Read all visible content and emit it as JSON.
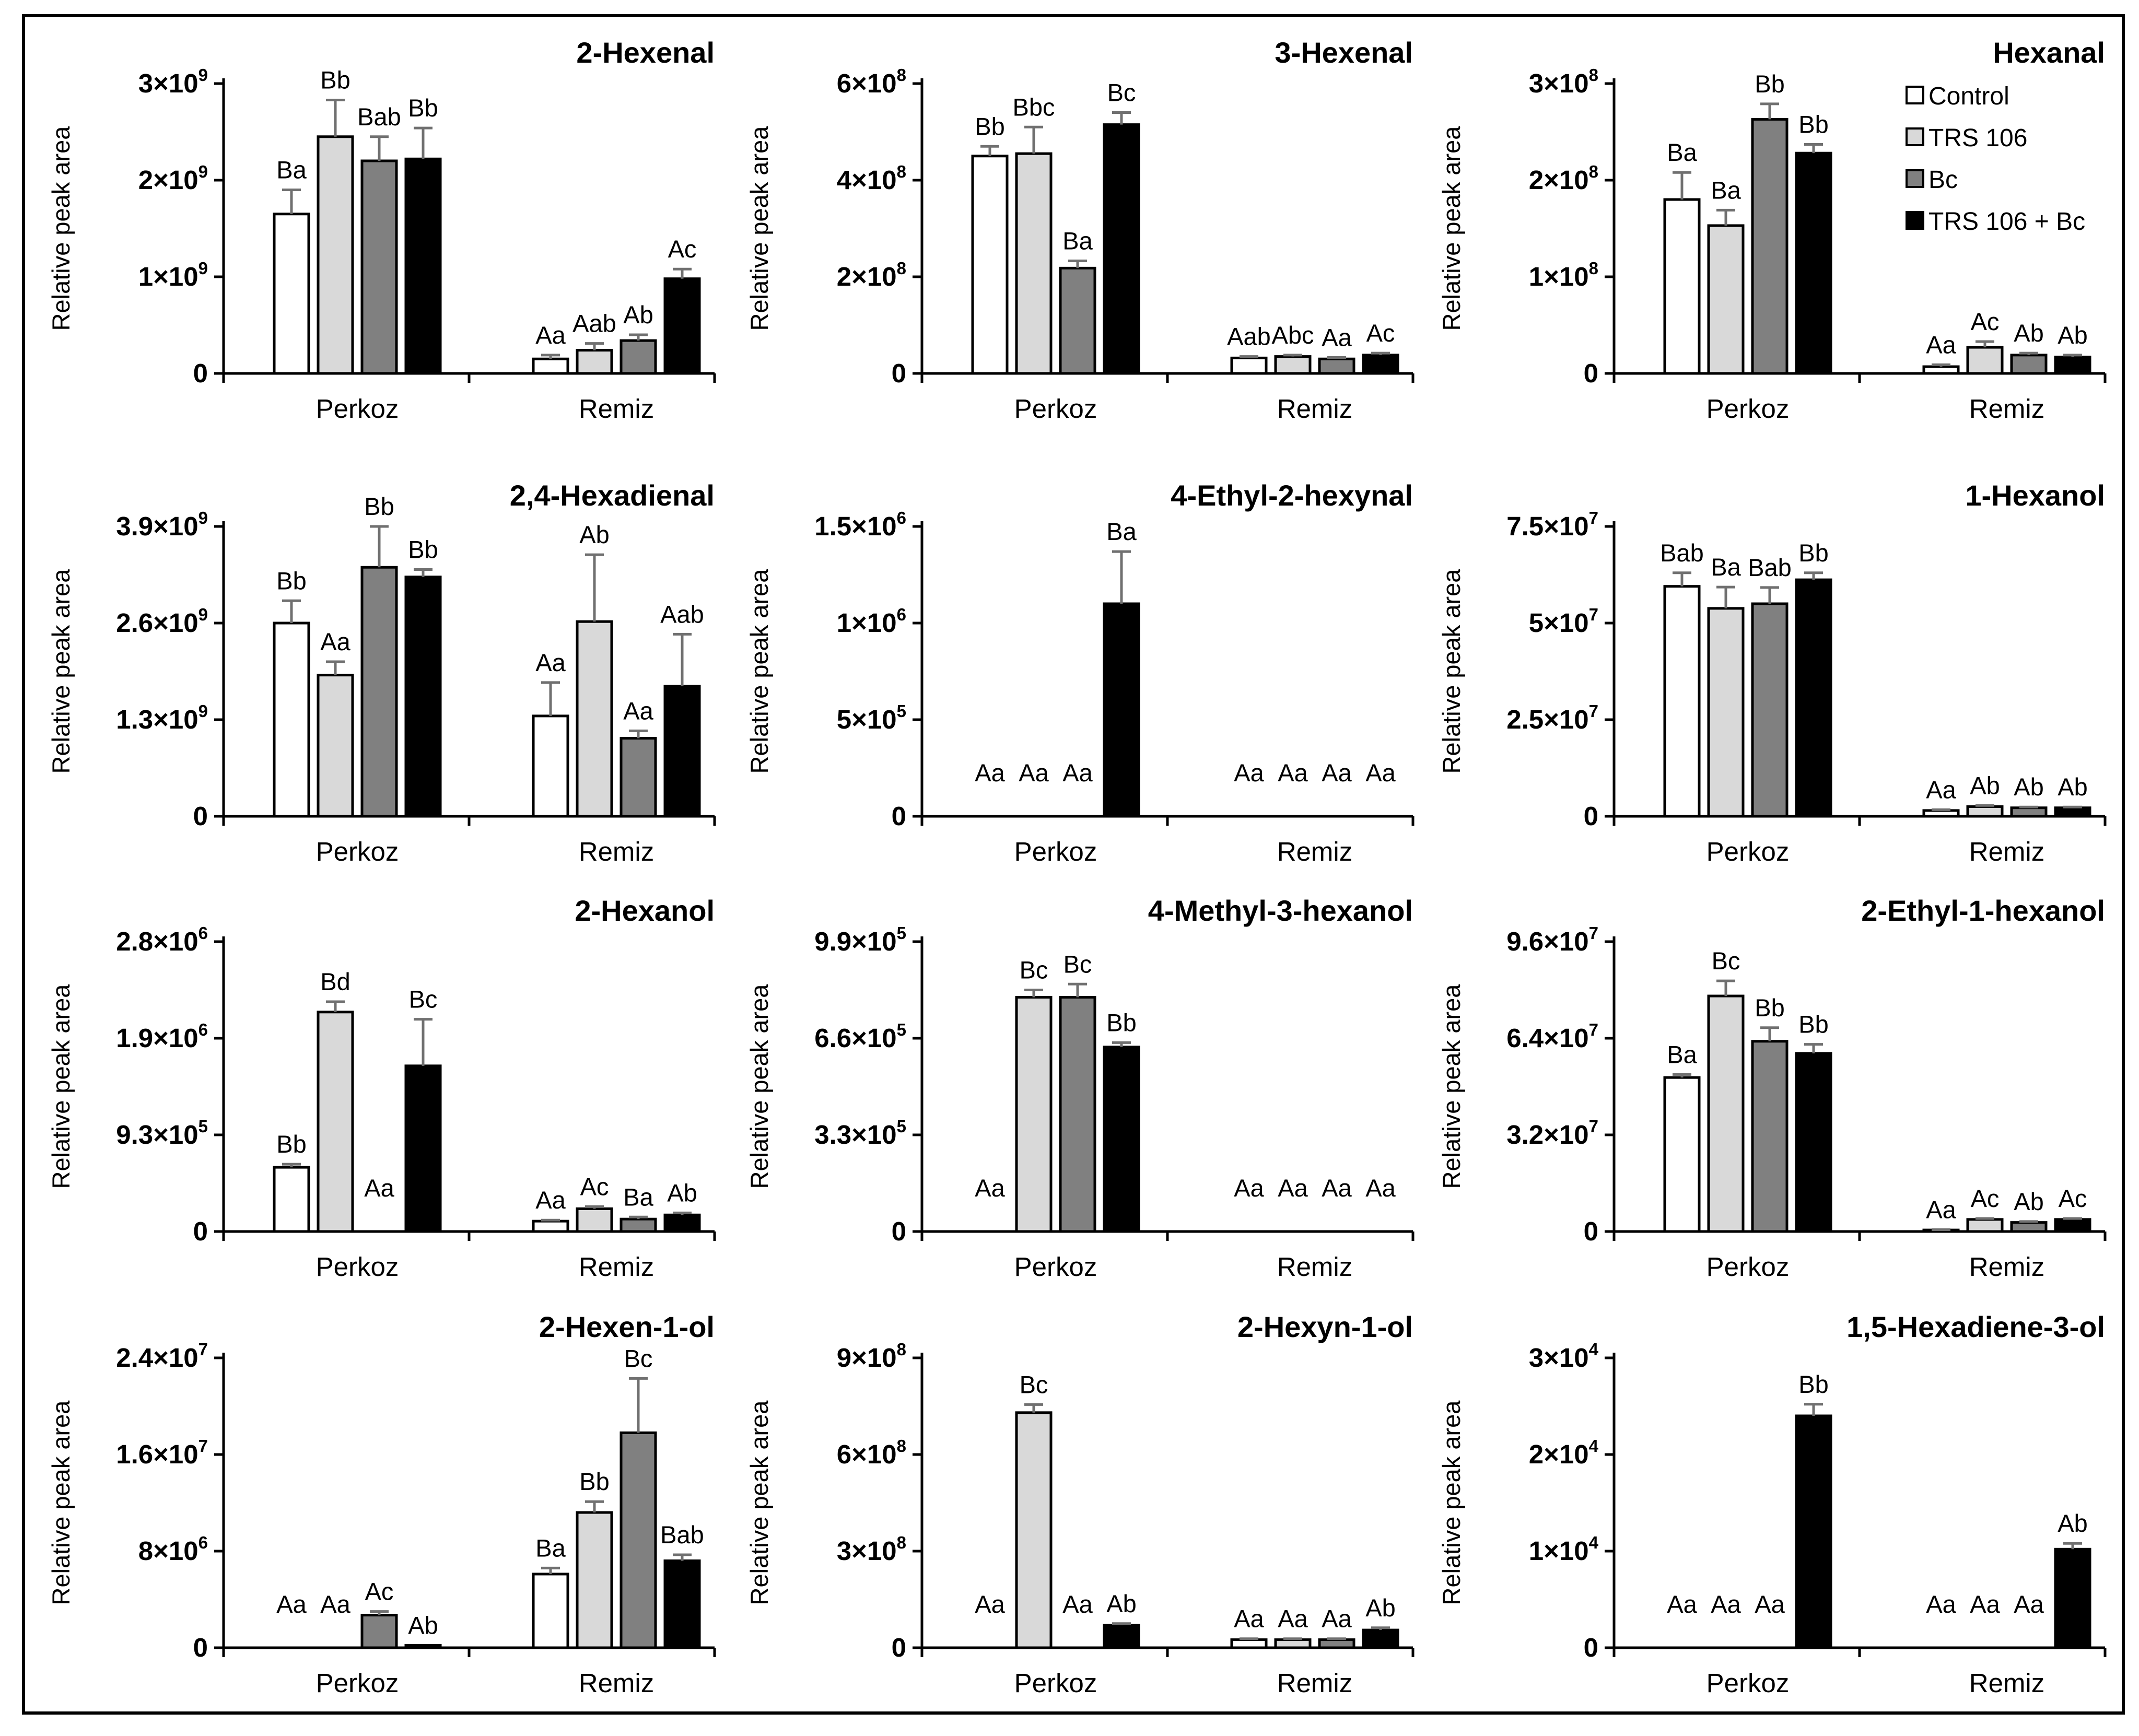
{
  "chart_data": {
    "type": "bar",
    "ylabel": "Relative peak area",
    "categories": [
      "Perkoz",
      "Remiz"
    ],
    "legend": [
      {
        "name": "Control",
        "color": "#ffffff"
      },
      {
        "name": "TRS 106",
        "color": "#d9d9d9"
      },
      {
        "name": "Bc",
        "color": "#808080"
      },
      {
        "name": "TRS 106 + Bc",
        "color": "#000000"
      }
    ],
    "legend_position": "top-right",
    "panels": [
      {
        "title": "2-Hexenal",
        "ymax": 3,
        "exp": "9",
        "ticks": [
          {
            "label": "0"
          },
          {
            "label": "1×10",
            "sup": "9"
          },
          {
            "label": "2×10",
            "sup": "9"
          },
          {
            "label": "3×10",
            "sup": "9"
          }
        ],
        "values": [
          [
            1.65,
            2.45,
            2.2,
            2.22
          ],
          [
            0.15,
            0.24,
            0.34,
            0.98
          ]
        ],
        "errors": [
          [
            0.25,
            0.38,
            0.25,
            0.32
          ],
          [
            0.04,
            0.07,
            0.06,
            0.1
          ]
        ],
        "letters": [
          [
            "Ba",
            "Bb",
            "Bab",
            "Bb"
          ],
          [
            "Aa",
            "Aab",
            "Ab",
            "Ac"
          ]
        ]
      },
      {
        "title": "3-Hexenal",
        "ymax": 6,
        "exp": "8",
        "ticks": [
          {
            "label": "0"
          },
          {
            "label": "2×10",
            "sup": "8"
          },
          {
            "label": "4×10",
            "sup": "8"
          },
          {
            "label": "6×10",
            "sup": "8"
          }
        ],
        "values": [
          [
            4.5,
            4.55,
            2.18,
            5.15
          ],
          [
            0.32,
            0.35,
            0.3,
            0.38
          ]
        ],
        "errors": [
          [
            0.2,
            0.55,
            0.15,
            0.25
          ],
          [
            0.03,
            0.03,
            0.03,
            0.04
          ]
        ],
        "letters": [
          [
            "Bb",
            "Bbc",
            "Ba",
            "Bc"
          ],
          [
            "Aab",
            "Abc",
            "Aa",
            "Ac"
          ]
        ]
      },
      {
        "title": "Hexanal",
        "ymax": 3,
        "exp": "8",
        "ticks": [
          {
            "label": "0"
          },
          {
            "label": "1×10",
            "sup": "8"
          },
          {
            "label": "2×10",
            "sup": "8"
          },
          {
            "label": "3×10",
            "sup": "8"
          }
        ],
        "values": [
          [
            1.8,
            1.53,
            2.63,
            2.28
          ],
          [
            0.07,
            0.27,
            0.19,
            0.17
          ]
        ],
        "errors": [
          [
            0.28,
            0.16,
            0.16,
            0.09
          ],
          [
            0.02,
            0.06,
            0.02,
            0.02
          ]
        ],
        "letters": [
          [
            "Ba",
            "Ba",
            "Bb",
            "Bb"
          ],
          [
            "Aa",
            "Ac",
            "Ab",
            "Ab"
          ]
        ]
      },
      {
        "title": "2,4-Hexadienal",
        "ymax": 3.9,
        "exp": "9",
        "ticks": [
          {
            "label": "0"
          },
          {
            "label": "1.3×10",
            "sup": "9"
          },
          {
            "label": "2.6×10",
            "sup": "9"
          },
          {
            "label": "3.9×10",
            "sup": "9"
          }
        ],
        "values": [
          [
            2.6,
            1.9,
            3.35,
            3.22
          ],
          [
            1.35,
            2.62,
            1.05,
            1.75
          ]
        ],
        "errors": [
          [
            0.3,
            0.18,
            0.55,
            0.1
          ],
          [
            0.45,
            0.9,
            0.1,
            0.7
          ]
        ],
        "letters": [
          [
            "Bb",
            "Aa",
            "Bb",
            "Bb"
          ],
          [
            "Aa",
            "Ab",
            "Aa",
            "Aab"
          ]
        ]
      },
      {
        "title": "4-Ethyl-2-hexynal",
        "ymax": 1.5,
        "exp": "6",
        "ticks": [
          {
            "label": "0"
          },
          {
            "label": "5×10",
            "sup": "5"
          },
          {
            "label": "1×10",
            "sup": "6"
          },
          {
            "label": "1.5×10",
            "sup": "6"
          }
        ],
        "values": [
          [
            0,
            0,
            0,
            1.1
          ],
          [
            0,
            0,
            0,
            0
          ]
        ],
        "errors": [
          [
            0,
            0,
            0,
            0.27
          ],
          [
            0,
            0,
            0,
            0
          ]
        ],
        "letters": [
          [
            "Aa",
            "Aa",
            "Aa",
            "Ba"
          ],
          [
            "Aa",
            "Aa",
            "Aa",
            "Aa"
          ]
        ]
      },
      {
        "title": "1-Hexanol",
        "ymax": 7.5,
        "exp": "7",
        "ticks": [
          {
            "label": "0"
          },
          {
            "label": "2.5×10",
            "sup": "7"
          },
          {
            "label": "5×10",
            "sup": "7"
          },
          {
            "label": "7.5×10",
            "sup": "7"
          }
        ],
        "values": [
          [
            5.95,
            5.38,
            5.5,
            6.12
          ],
          [
            0.15,
            0.25,
            0.22,
            0.22
          ]
        ],
        "errors": [
          [
            0.35,
            0.55,
            0.42,
            0.18
          ],
          [
            0.02,
            0.03,
            0.02,
            0.02
          ]
        ],
        "letters": [
          [
            "Bab",
            "Ba",
            "Bab",
            "Bb"
          ],
          [
            "Aa",
            "Ab",
            "Ab",
            "Ab"
          ]
        ]
      },
      {
        "title": "2-Hexanol",
        "ymax": 2.8,
        "exp": "6",
        "ticks": [
          {
            "label": "0"
          },
          {
            "label": "9.3×10",
            "sup": "5"
          },
          {
            "label": "1.9×10",
            "sup": "6"
          },
          {
            "label": "2.8×10",
            "sup": "6"
          }
        ],
        "values": [
          [
            0.62,
            2.12,
            0,
            1.6
          ],
          [
            0.1,
            0.22,
            0.12,
            0.16
          ]
        ],
        "errors": [
          [
            0.03,
            0.1,
            0,
            0.45
          ],
          [
            0.01,
            0.02,
            0.02,
            0.02
          ]
        ],
        "letters": [
          [
            "Bb",
            "Bd",
            "Aa",
            "Bc"
          ],
          [
            "Aa",
            "Ac",
            "Ba",
            "Ab"
          ]
        ]
      },
      {
        "title": "4-Methyl-3-hexanol",
        "ymax": 9.9,
        "exp": "5",
        "ticks": [
          {
            "label": "0"
          },
          {
            "label": "3.3×10",
            "sup": "5"
          },
          {
            "label": "6.6×10",
            "sup": "5"
          },
          {
            "label": "9.9×10",
            "sup": "5"
          }
        ],
        "values": [
          [
            0,
            8.0,
            8.0,
            6.3
          ],
          [
            0,
            0,
            0,
            0
          ]
        ],
        "errors": [
          [
            0,
            0.25,
            0.45,
            0.15
          ],
          [
            0,
            0,
            0,
            0
          ]
        ],
        "letters": [
          [
            "Aa",
            "Bc",
            "Bc",
            "Bb"
          ],
          [
            "Aa",
            "Aa",
            "Aa",
            "Aa"
          ]
        ]
      },
      {
        "title": "2-Ethyl-1-hexanol",
        "ymax": 9.6,
        "exp": "7",
        "ticks": [
          {
            "label": "0"
          },
          {
            "label": "3.2×10",
            "sup": "7"
          },
          {
            "label": "6.4×10",
            "sup": "7"
          },
          {
            "label": "9.6×10",
            "sup": "7"
          }
        ],
        "values": [
          [
            5.1,
            7.8,
            6.3,
            5.9
          ],
          [
            0.05,
            0.4,
            0.3,
            0.4
          ]
        ],
        "errors": [
          [
            0.1,
            0.5,
            0.45,
            0.3
          ],
          [
            0.01,
            0.03,
            0.03,
            0.03
          ]
        ],
        "letters": [
          [
            "Ba",
            "Bc",
            "Bb",
            "Bb"
          ],
          [
            "Aa",
            "Ac",
            "Ab",
            "Ac"
          ]
        ]
      },
      {
        "title": "2-Hexen-1-ol",
        "ymax": 2.4,
        "exp": "7",
        "ticks": [
          {
            "label": "0"
          },
          {
            "label": "8×10",
            "sup": "6"
          },
          {
            "label": "1.6×10",
            "sup": "7"
          },
          {
            "label": "2.4×10",
            "sup": "7"
          }
        ],
        "values": [
          [
            0,
            0,
            0.27,
            0.02
          ],
          [
            0.61,
            1.12,
            1.78,
            0.72
          ]
        ],
        "errors": [
          [
            0,
            0,
            0.03,
            0
          ],
          [
            0.05,
            0.09,
            0.45,
            0.05
          ]
        ],
        "letters": [
          [
            "Aa",
            "Aa",
            "Ac",
            "Ab"
          ],
          [
            "Ba",
            "Bb",
            "Bc",
            "Bab"
          ]
        ]
      },
      {
        "title": "2-Hexyn-1-ol",
        "ymax": 9,
        "exp": "8",
        "ticks": [
          {
            "label": "0"
          },
          {
            "label": "3×10",
            "sup": "8"
          },
          {
            "label": "6×10",
            "sup": "8"
          },
          {
            "label": "9×10",
            "sup": "8"
          }
        ],
        "values": [
          [
            0,
            7.3,
            0,
            0.7
          ],
          [
            0.25,
            0.25,
            0.25,
            0.55
          ]
        ],
        "errors": [
          [
            0,
            0.25,
            0,
            0.05
          ],
          [
            0.03,
            0.03,
            0.03,
            0.07
          ]
        ],
        "letters": [
          [
            "Aa",
            "Bc",
            "Aa",
            "Ab"
          ],
          [
            "Aa",
            "Aa",
            "Aa",
            "Ab"
          ]
        ]
      },
      {
        "title": "1,5-Hexadiene-3-ol",
        "ymax": 3,
        "exp": "4",
        "ticks": [
          {
            "label": "0"
          },
          {
            "label": "1×10",
            "sup": "4"
          },
          {
            "label": "2×10",
            "sup": "4"
          },
          {
            "label": "3×10",
            "sup": "4"
          }
        ],
        "values": [
          [
            0,
            0,
            0,
            2.4
          ],
          [
            0,
            0,
            0,
            1.02
          ]
        ],
        "errors": [
          [
            0,
            0,
            0,
            0.12
          ],
          [
            0,
            0,
            0,
            0.06
          ]
        ],
        "letters": [
          [
            "Aa",
            "Aa",
            "Aa",
            "Bb"
          ],
          [
            "Aa",
            "Aa",
            "Aa",
            "Ab"
          ]
        ]
      }
    ]
  }
}
